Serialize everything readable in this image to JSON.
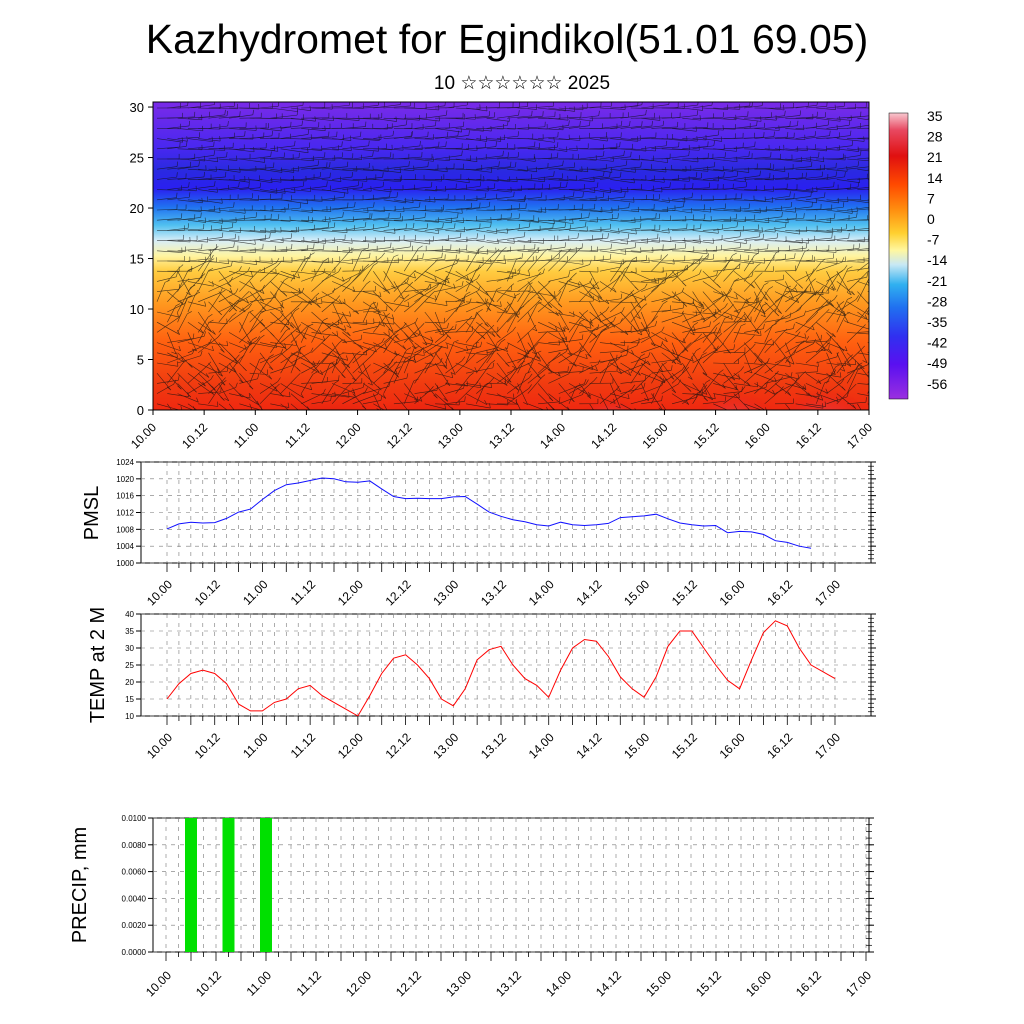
{
  "header": {
    "title": "Kazhydromet for Egindikol(51.01 69.05)",
    "subtitle": "10 ☆☆☆☆☆☆ 2025"
  },
  "colors": {
    "pmsl_line": "#1010ff",
    "temp_line": "#ff0000",
    "precip_bar": "#00e000",
    "colorbar_stops": [
      "#f4b3bd",
      "#e04a55",
      "#e01010",
      "#ff4a00",
      "#ff8a10",
      "#ffc030",
      "#fff090",
      "#d8f0f8",
      "#30b8f0",
      "#2080f0",
      "#3030f0",
      "#6a10f0",
      "#9a30e0"
    ]
  },
  "x_tick_labels": [
    "10.00",
    "10.12",
    "11.00",
    "11.12",
    "12.00",
    "12.12",
    "13.00",
    "13.12",
    "14.00",
    "14.12",
    "15.00",
    "15.12",
    "16.00",
    "16.12",
    "17.00"
  ],
  "chart_data": [
    {
      "type": "heatmap",
      "title": "",
      "ylabel": "",
      "yticks": [
        0,
        5,
        10,
        15,
        20,
        25,
        30
      ],
      "ylim": [
        0,
        30.5
      ],
      "xlim": [
        0,
        14
      ],
      "colorbar_labels": [
        "35",
        "28",
        "21",
        "14",
        "7",
        "0",
        "-7",
        "-14",
        "-21",
        "-28",
        "-35",
        "-42",
        "-49",
        "-56"
      ],
      "overlay": "wind barbs"
    },
    {
      "type": "line",
      "ylabel": "PMSL",
      "yticks": [
        "1000",
        "1004",
        "1008",
        "1012",
        "1016",
        "1020",
        "1024"
      ],
      "ylim": [
        1000,
        1024
      ],
      "xlim": [
        0,
        14
      ],
      "x": [
        0,
        0.25,
        0.5,
        0.75,
        1,
        1.25,
        1.5,
        1.75,
        2,
        2.25,
        2.5,
        2.75,
        3,
        3.25,
        3.5,
        3.75,
        4,
        4.25,
        4.5,
        4.75,
        5,
        5.25,
        5.5,
        5.75,
        6,
        6.25,
        6.5,
        6.75,
        7,
        7.25,
        7.5,
        7.75,
        8,
        8.25,
        8.5,
        8.75,
        9,
        9.25,
        9.5,
        9.75,
        10,
        10.25,
        10.5,
        10.75,
        11,
        11.25,
        11.5,
        11.75,
        12,
        12.25,
        12.5,
        12.75,
        13,
        13.25,
        13.5
      ],
      "series": [
        {
          "values": [
            1008.1,
            1009.3,
            1009.7,
            1009.5,
            1009.6,
            1010.6,
            1012.1,
            1012.8,
            1015.1,
            1017.2,
            1018.6,
            1019.0,
            1019.6,
            1020.2,
            1020.0,
            1019.3,
            1019.2,
            1019.5,
            1017.6,
            1015.8,
            1015.3,
            1015.4,
            1015.3,
            1015.3,
            1015.7,
            1015.8,
            1014.0,
            1012.1,
            1011.1,
            1010.3,
            1009.8,
            1009.1,
            1008.8,
            1009.7,
            1009.1,
            1008.9,
            1009.1,
            1009.4,
            1010.8,
            1011.0,
            1011.2,
            1011.6,
            1010.5,
            1009.5,
            1009.1,
            1008.8,
            1008.9,
            1007.2,
            1007.5,
            1007.4,
            1006.8,
            1005.3,
            1004.9,
            1004.0,
            1003.5
          ]
        }
      ]
    },
    {
      "type": "line",
      "ylabel": "TEMP at 2 M",
      "yticks": [
        "10",
        "15",
        "20",
        "25",
        "30",
        "35",
        "40"
      ],
      "ylim": [
        10,
        40
      ],
      "xlim": [
        0,
        14
      ],
      "x": [
        0,
        0.25,
        0.5,
        0.75,
        1,
        1.25,
        1.5,
        1.75,
        2,
        2.25,
        2.5,
        2.75,
        3,
        3.25,
        3.5,
        3.75,
        4,
        4.25,
        4.5,
        4.75,
        5,
        5.25,
        5.5,
        5.75,
        6,
        6.25,
        6.5,
        6.75,
        7,
        7.25,
        7.5,
        7.75,
        8,
        8.25,
        8.5,
        8.75,
        9,
        9.25,
        9.5,
        9.75,
        10,
        10.25,
        10.5,
        10.75,
        11,
        11.25,
        11.5,
        11.75,
        12,
        12.25,
        12.5,
        12.75,
        13,
        13.25,
        13.5,
        14
      ],
      "series": [
        {
          "values": [
            15.0,
            19.5,
            22.5,
            23.5,
            22.5,
            19.5,
            13.5,
            11.5,
            11.5,
            14.0,
            15.0,
            18.0,
            19.0,
            16.0,
            14.0,
            12.0,
            10.0,
            16.0,
            22.5,
            27.0,
            28.0,
            25.0,
            21.0,
            15.0,
            13.0,
            18.0,
            26.5,
            29.5,
            30.5,
            25.0,
            21.0,
            19.0,
            15.5,
            23.5,
            30.0,
            32.5,
            32.0,
            27.5,
            21.5,
            18.0,
            15.5,
            21.5,
            30.5,
            35.0,
            35.0,
            30.0,
            25.0,
            20.5,
            18.0,
            26.5,
            34.5,
            38.0,
            36.5,
            30.0,
            25.0,
            21.0
          ]
        }
      ]
    },
    {
      "type": "bar",
      "ylabel": "PRECIP, mm",
      "yticks": [
        "0.0000",
        "0.0020",
        "0.0040",
        "0.0060",
        "0.0080",
        "0.0100"
      ],
      "ylim": [
        0,
        0.01
      ],
      "xlim": [
        0,
        14
      ],
      "x": [
        0.5,
        1.25,
        2.0
      ],
      "values": [
        0.01,
        0.01,
        0.01
      ]
    }
  ]
}
